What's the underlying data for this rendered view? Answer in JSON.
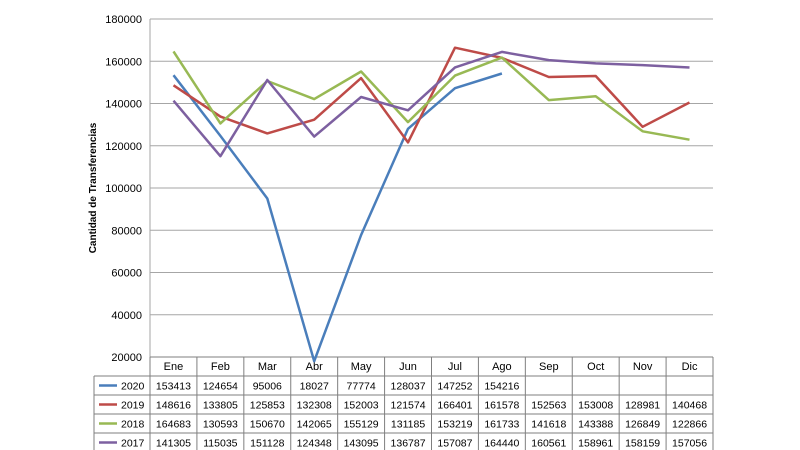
{
  "chart_data": {
    "type": "line",
    "ylabel": "Cantidad de Transferencias",
    "ylim": [
      20000,
      180000
    ],
    "y_ticks": [
      20000,
      40000,
      60000,
      80000,
      100000,
      120000,
      140000,
      160000,
      180000
    ],
    "grid": "horizontal",
    "legend": "data-table-below",
    "categories": [
      "Ene",
      "Feb",
      "Mar",
      "Abr",
      "May",
      "Jun",
      "Jul",
      "Ago",
      "Sep",
      "Oct",
      "Nov",
      "Dic"
    ],
    "series": [
      {
        "name": "2020",
        "color": "#4a7ebb",
        "values": [
          153413,
          124654,
          95006,
          18027,
          77774,
          128037,
          147252,
          154216,
          null,
          null,
          null,
          null
        ]
      },
      {
        "name": "2019",
        "color": "#be4b48",
        "values": [
          148616,
          133805,
          125853,
          132308,
          152003,
          121574,
          166401,
          161578,
          152563,
          153008,
          128981,
          140468
        ]
      },
      {
        "name": "2018",
        "color": "#98b954",
        "values": [
          164683,
          130593,
          150670,
          142065,
          155129,
          131185,
          153219,
          161733,
          141618,
          143388,
          126849,
          122866
        ]
      },
      {
        "name": "2017",
        "color": "#7d60a0",
        "values": [
          141305,
          115035,
          151128,
          124348,
          143095,
          136787,
          157087,
          164440,
          160561,
          158961,
          158159,
          157056
        ]
      }
    ]
  }
}
